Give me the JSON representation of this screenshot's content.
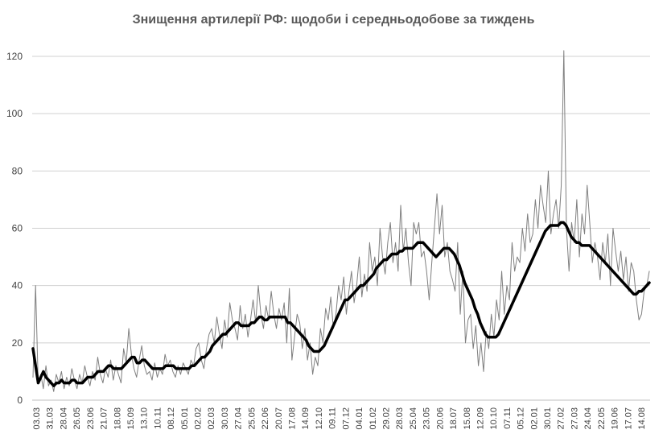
{
  "chart_data": {
    "type": "line",
    "title": "Знищення артилерії РФ: щодоби і середньодобове за тиждень",
    "xlabel": "",
    "ylabel": "",
    "ylim": [
      0,
      120
    ],
    "yticks": [
      "0",
      "20",
      "40",
      "60",
      "80",
      "100",
      "120"
    ],
    "grid": "horizontal",
    "xtick_labels": [
      "03.03",
      "31.03",
      "28.04",
      "26.05",
      "23.06",
      "21.07",
      "18.08",
      "15.09",
      "13.10",
      "10.11",
      "08.12",
      "05.01",
      "02.02",
      "02.03",
      "30.03",
      "27.04",
      "25.05",
      "22.06",
      "20.07",
      "17.08",
      "14.09",
      "12.10",
      "09.11",
      "07.12",
      "04.01",
      "01.02",
      "29.02",
      "28.03",
      "25.04",
      "23.05",
      "20.06",
      "18.07",
      "15.08",
      "12.09",
      "10.10",
      "07.11",
      "05.12",
      "02.01",
      "30.01",
      "27.02",
      "27.03",
      "24.04",
      "22.05",
      "19.06",
      "17.07",
      "14.08"
    ],
    "series": [
      {
        "color": "#7f7f7f",
        "values": [
          8,
          40,
          6,
          9,
          4,
          12,
          5,
          7,
          3,
          9,
          6,
          10,
          4,
          8,
          5,
          11,
          7,
          4,
          9,
          6,
          12,
          8,
          5,
          10,
          7,
          15,
          9,
          6,
          11,
          8,
          14,
          7,
          12,
          9,
          6,
          18,
          13,
          25,
          16,
          11,
          8,
          14,
          19,
          12,
          9,
          10,
          7,
          13,
          8,
          11,
          9,
          16,
          12,
          14,
          10,
          8,
          12,
          9,
          13,
          11,
          9,
          14,
          12,
          18,
          20,
          14,
          11,
          18,
          23,
          25,
          20,
          29,
          23,
          18,
          28,
          22,
          34,
          28,
          25,
          21,
          33,
          25,
          30,
          22,
          28,
          35,
          27,
          40,
          30,
          25,
          33,
          28,
          38,
          30,
          25,
          32,
          28,
          34,
          20,
          39,
          14,
          22,
          30,
          27,
          18,
          25,
          14,
          20,
          9,
          15,
          12,
          25,
          20,
          32,
          28,
          36,
          25,
          30,
          40,
          35,
          43,
          30,
          38,
          45,
          34,
          40,
          50,
          36,
          44,
          38,
          55,
          45,
          50,
          40,
          60,
          50,
          44,
          55,
          62,
          48,
          55,
          45,
          68,
          52,
          60,
          48,
          40,
          62,
          58,
          62,
          50,
          52,
          45,
          35,
          48,
          60,
          72,
          58,
          68,
          50,
          55,
          45,
          42,
          38,
          55,
          30,
          45,
          20,
          28,
          30,
          18,
          26,
          12,
          20,
          10,
          24,
          18,
          30,
          22,
          35,
          28,
          45,
          30,
          40,
          35,
          55,
          45,
          50,
          48,
          60,
          52,
          65,
          55,
          58,
          70,
          60,
          75,
          68,
          62,
          80,
          58,
          65,
          70,
          60,
          75,
          122,
          60,
          45,
          62,
          55,
          70,
          50,
          65,
          58,
          75,
          62,
          48,
          55,
          50,
          42,
          55,
          48,
          58,
          40,
          60,
          52,
          45,
          52,
          42,
          50,
          38,
          48,
          45,
          35,
          28,
          30,
          38,
          40,
          45
        ]
      },
      {
        "color": "#000000",
        "values": [
          18,
          12,
          6,
          8,
          10,
          8,
          7,
          6,
          5,
          6,
          6,
          7,
          6,
          6,
          6,
          7,
          7,
          6,
          6,
          6,
          7,
          8,
          8,
          8,
          9,
          10,
          10,
          10,
          11,
          12,
          12,
          11,
          11,
          11,
          11,
          12,
          13,
          14,
          15,
          15,
          13,
          13,
          14,
          14,
          13,
          12,
          11,
          11,
          11,
          11,
          11,
          12,
          12,
          12,
          12,
          11,
          11,
          11,
          11,
          11,
          11,
          12,
          12,
          13,
          14,
          15,
          15,
          16,
          17,
          19,
          20,
          21,
          22,
          23,
          23,
          24,
          25,
          26,
          27,
          27,
          26,
          26,
          26,
          26,
          27,
          27,
          28,
          29,
          29,
          28,
          28,
          29,
          29,
          29,
          29,
          29,
          29,
          29,
          27,
          27,
          26,
          25,
          24,
          23,
          22,
          21,
          19,
          18,
          17,
          17,
          17,
          18,
          19,
          21,
          23,
          25,
          27,
          29,
          31,
          33,
          35,
          35,
          36,
          37,
          38,
          39,
          40,
          40,
          41,
          42,
          43,
          44,
          46,
          47,
          48,
          49,
          49,
          50,
          51,
          51,
          51,
          52,
          52,
          53,
          53,
          53,
          53,
          54,
          55,
          55,
          55,
          54,
          53,
          52,
          51,
          50,
          51,
          52,
          53,
          53,
          53,
          52,
          51,
          49,
          47,
          44,
          41,
          39,
          37,
          35,
          32,
          30,
          27,
          25,
          23,
          22,
          22,
          22,
          22,
          23,
          25,
          27,
          29,
          31,
          33,
          35,
          37,
          39,
          41,
          43,
          45,
          47,
          49,
          51,
          53,
          55,
          57,
          59,
          60,
          61,
          61,
          61,
          61,
          62,
          62,
          61,
          59,
          57,
          56,
          55,
          55,
          54,
          54,
          54,
          54,
          53,
          52,
          51,
          50,
          49,
          48,
          47,
          46,
          45,
          44,
          43,
          42,
          41,
          40,
          39,
          38,
          37,
          37,
          38,
          38,
          39,
          40,
          41
        ]
      }
    ]
  }
}
